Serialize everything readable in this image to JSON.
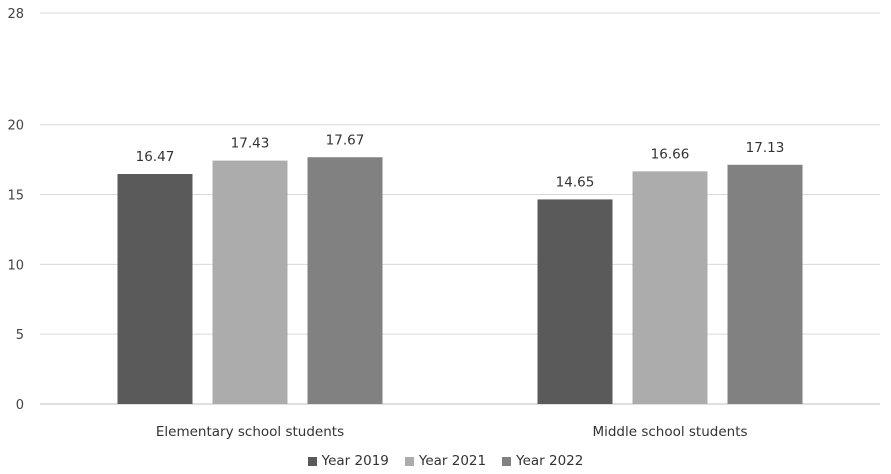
{
  "chart_data": {
    "type": "bar",
    "categories": [
      "Elementary school students",
      "Middle school students"
    ],
    "series": [
      {
        "name": "Year 2019",
        "values": [
          16.47,
          14.65
        ],
        "color": "#5a5a5a"
      },
      {
        "name": "Year 2021",
        "values": [
          17.43,
          16.66
        ],
        "color": "#acacac"
      },
      {
        "name": "Year 2022",
        "values": [
          17.67,
          17.13
        ],
        "color": "#818181"
      }
    ],
    "ylim": [
      0,
      28
    ],
    "yticks": [
      0,
      5,
      10,
      15,
      20,
      28
    ],
    "grid": true,
    "legend_position": "bottom"
  }
}
